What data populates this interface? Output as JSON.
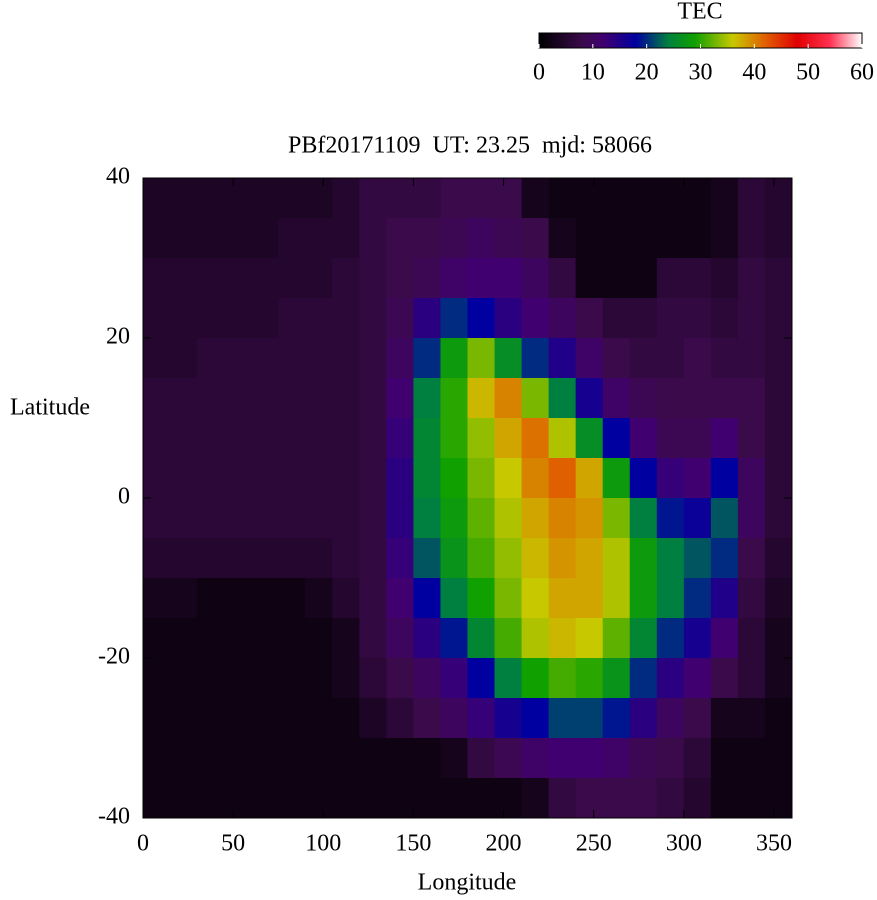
{
  "chart_data": {
    "type": "heatmap",
    "title": "PBf20171109  UT: 23.25  mjd: 58066",
    "xlabel": "Longitude",
    "ylabel": "Latitude",
    "xlim": [
      0,
      360
    ],
    "xticks": [
      0,
      50,
      100,
      150,
      200,
      250,
      300,
      350
    ],
    "ylim": [
      -40,
      40
    ],
    "yticks": [
      -40,
      -20,
      0,
      20,
      40
    ],
    "x": [
      7.5,
      22.5,
      37.5,
      52.5,
      67.5,
      82.5,
      97.5,
      112.5,
      127.5,
      142.5,
      157.5,
      172.5,
      187.5,
      202.5,
      217.5,
      232.5,
      247.5,
      262.5,
      277.5,
      292.5,
      307.5,
      322.5,
      337.5,
      352.5
    ],
    "y": [
      37.5,
      32.5,
      27.5,
      22.5,
      17.5,
      12.5,
      7.5,
      2.5,
      -2.5,
      -7.5,
      -12.5,
      -17.5,
      -22.5,
      -27.5,
      -32.5,
      -37.5
    ],
    "z": [
      [
        4,
        4,
        4,
        4,
        4,
        4,
        4,
        5,
        7,
        7,
        7,
        8,
        8,
        8,
        3,
        2,
        2,
        2,
        2,
        2,
        2,
        3,
        6,
        5
      ],
      [
        4,
        4,
        4,
        4,
        4,
        5,
        5,
        5,
        7,
        8,
        8,
        9,
        10,
        9,
        8,
        3,
        2,
        2,
        2,
        2,
        2,
        3,
        6,
        5
      ],
      [
        5,
        5,
        5,
        5,
        5,
        5,
        5,
        6,
        7,
        8,
        9,
        11,
        12,
        12,
        10,
        7,
        2,
        2,
        2,
        6,
        6,
        5,
        7,
        6
      ],
      [
        5,
        5,
        5,
        5,
        5,
        6,
        6,
        6,
        7,
        9,
        14,
        20,
        18,
        14,
        12,
        10,
        8,
        6,
        6,
        7,
        7,
        6,
        7,
        6
      ],
      [
        5,
        5,
        6,
        6,
        6,
        6,
        6,
        6,
        7,
        10,
        20,
        28,
        33,
        26,
        20,
        15,
        11,
        8,
        7,
        7,
        8,
        7,
        7,
        6
      ],
      [
        6,
        6,
        6,
        6,
        6,
        6,
        6,
        6,
        7,
        12,
        24,
        30,
        37,
        40,
        33,
        24,
        16,
        11,
        9,
        8,
        8,
        8,
        8,
        6
      ],
      [
        6,
        6,
        6,
        6,
        6,
        6,
        6,
        6,
        7,
        13,
        25,
        30,
        34,
        38,
        41,
        35,
        26,
        18,
        12,
        9,
        9,
        12,
        8,
        6
      ],
      [
        6,
        6,
        6,
        6,
        6,
        6,
        6,
        6,
        7,
        14,
        25,
        29,
        33,
        36,
        40,
        42,
        38,
        28,
        18,
        13,
        12,
        18,
        10,
        6
      ],
      [
        6,
        6,
        6,
        6,
        6,
        6,
        6,
        6,
        7,
        14,
        24,
        28,
        32,
        35,
        38,
        40,
        39,
        33,
        24,
        19,
        17,
        22,
        10,
        6
      ],
      [
        5,
        5,
        5,
        5,
        5,
        5,
        5,
        6,
        7,
        13,
        22,
        27,
        31,
        34,
        37,
        39,
        38,
        35,
        28,
        24,
        22,
        20,
        8,
        5
      ],
      [
        3,
        3,
        2,
        2,
        2,
        2,
        3,
        5,
        7,
        12,
        18,
        24,
        29,
        33,
        36,
        38,
        38,
        35,
        28,
        24,
        20,
        15,
        7,
        4
      ],
      [
        2,
        2,
        2,
        2,
        2,
        2,
        2,
        3,
        7,
        10,
        14,
        19,
        25,
        31,
        35,
        37,
        36,
        32,
        25,
        20,
        16,
        12,
        6,
        3
      ],
      [
        2,
        2,
        2,
        2,
        2,
        2,
        2,
        3,
        6,
        8,
        10,
        13,
        18,
        24,
        29,
        31,
        30,
        27,
        20,
        14,
        12,
        8,
        6,
        3
      ],
      [
        2,
        2,
        2,
        2,
        2,
        2,
        2,
        2,
        4,
        6,
        8,
        10,
        13,
        16,
        18,
        21,
        21,
        19,
        14,
        10,
        8,
        3,
        3,
        2
      ],
      [
        2,
        2,
        2,
        2,
        2,
        2,
        2,
        2,
        2,
        2,
        2,
        3,
        7,
        9,
        11,
        12,
        12,
        11,
        9,
        8,
        6,
        2,
        2,
        2
      ],
      [
        2,
        2,
        2,
        2,
        2,
        2,
        2,
        2,
        2,
        2,
        2,
        2,
        2,
        2,
        3,
        7,
        8,
        8,
        8,
        7,
        5,
        2,
        2,
        2
      ]
    ],
    "zlabel": "TEC",
    "zlim": [
      0,
      60
    ],
    "zticks": [
      0,
      10,
      20,
      30,
      40,
      50,
      60
    ],
    "colorscale": [
      [
        0,
        "#000000"
      ],
      [
        8,
        "#3a0a4a"
      ],
      [
        12,
        "#400070"
      ],
      [
        18,
        "#0000a0"
      ],
      [
        24,
        "#008040"
      ],
      [
        29,
        "#10a000"
      ],
      [
        36,
        "#c8c800"
      ],
      [
        42,
        "#e06000"
      ],
      [
        48,
        "#e00000"
      ],
      [
        54,
        "#ff3050"
      ],
      [
        60,
        "#ffffff"
      ]
    ]
  }
}
